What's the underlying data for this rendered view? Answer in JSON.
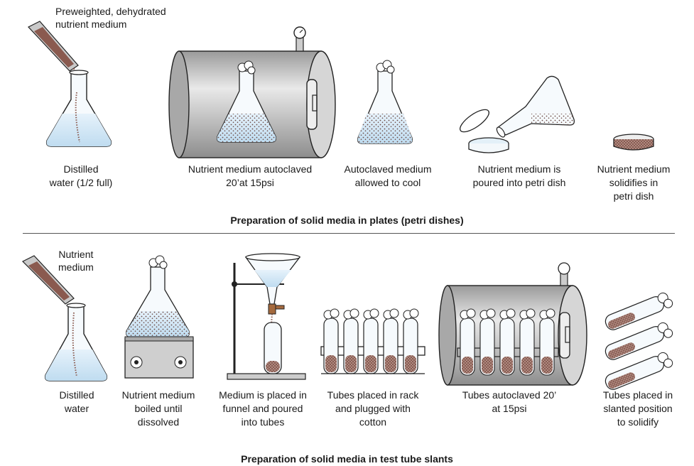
{
  "top": {
    "note": [
      "Preweighted, dehydrated",
      "nutrient medium"
    ],
    "steps": [
      [
        "Distilled",
        "water (1/2 full)"
      ],
      [
        "Nutrient medium autoclaved",
        "20’at 15psi"
      ],
      [
        "Autoclaved medium",
        "allowed to cool"
      ],
      [
        "Nutrient medium is",
        "poured into petri dish"
      ],
      [
        "Nutrient medium",
        "solidifies in",
        "petri dish"
      ]
    ],
    "caption": "Preparation of solid media in plates (petri dishes)"
  },
  "bottom": {
    "note": [
      "Nutrient",
      "medium"
    ],
    "steps": [
      [
        "Distilled",
        "water"
      ],
      [
        "Nutrient medium",
        "boiled until",
        "dissolved"
      ],
      [
        "Medium is placed in",
        "funnel and poured",
        "into tubes"
      ],
      [
        "Tubes placed in rack",
        "and plugged with",
        "cotton"
      ],
      [
        "Tubes autoclaved 20’",
        "at 15psi"
      ],
      [
        "Tubes placed in",
        "slanted position",
        "to solidify"
      ]
    ],
    "caption": "Preparation of solid media in test tube slants"
  },
  "colors": {
    "water": "#cfe6f5",
    "medium": "#8a5a4f",
    "metal": "#bdbdbd",
    "outline": "#222222"
  }
}
